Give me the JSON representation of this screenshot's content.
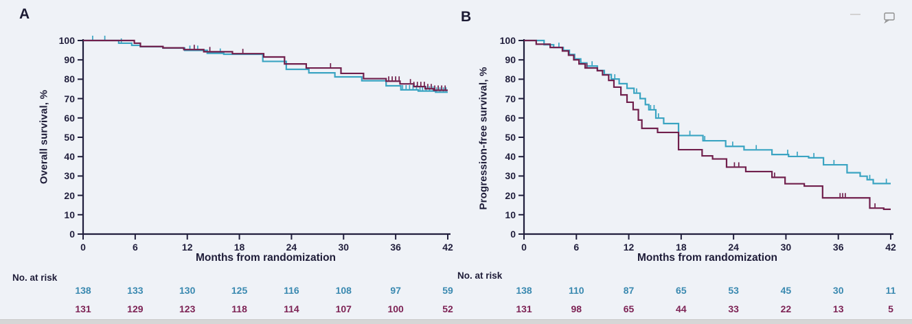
{
  "page": {
    "background": "#eff2f7"
  },
  "header_icons": {
    "comment_icon_color": "#8f8f8f",
    "dash_color": "#d2d2d2"
  },
  "colors": {
    "axis": "#201e3c",
    "teal_curve": "#3aa4c2",
    "maroon_curve": "#701f4c",
    "teal_number": "#3a89b0",
    "maroon_number": "#7d2355"
  },
  "chart_data": [
    {
      "type": "line",
      "subtype": "kaplan-meier-step",
      "panel_label": "A",
      "ylabel": "Overall survival, %",
      "xlabel": "Months from randomization",
      "xlim": [
        0,
        42
      ],
      "ylim": [
        0,
        100
      ],
      "xticks": [
        0,
        6,
        12,
        18,
        24,
        30,
        36,
        42
      ],
      "yticks": [
        0,
        10,
        20,
        30,
        40,
        50,
        60,
        70,
        80,
        90,
        100
      ],
      "grid": false,
      "legend": "none",
      "series": [
        {
          "name": "arm-teal",
          "color": "#3aa4c2",
          "points": [
            [
              0,
              100
            ],
            [
              4.1,
              98.6
            ],
            [
              5.6,
              97.5
            ],
            [
              6.6,
              96.8
            ],
            [
              9.2,
              96.1
            ],
            [
              11.7,
              94.9
            ],
            [
              14.3,
              93.4
            ],
            [
              16.2,
              92.9
            ],
            [
              20.7,
              89.2
            ],
            [
              23.4,
              85.1
            ],
            [
              26,
              83.3
            ],
            [
              29,
              81.2
            ],
            [
              32.1,
              79.2
            ],
            [
              34.9,
              76.6
            ],
            [
              36.6,
              74.5
            ],
            [
              38.6,
              73.9
            ],
            [
              40.6,
              73.3
            ],
            [
              42,
              73.3
            ]
          ],
          "censor_times": [
            1.1,
            2.5,
            4.4,
            12.3,
            13.2,
            15.8,
            36.8,
            37.2,
            37.6,
            38,
            38.4,
            38.8,
            39.1,
            39.5,
            39.9,
            40.3,
            40.7,
            41.1,
            41.5,
            41.8
          ]
        },
        {
          "name": "arm-maroon",
          "color": "#701f4c",
          "points": [
            [
              0,
              100
            ],
            [
              5.9,
              98.6
            ],
            [
              6.6,
              96.9
            ],
            [
              9.2,
              96.2
            ],
            [
              11.6,
              95.3
            ],
            [
              13.9,
              94.2
            ],
            [
              17.2,
              93.2
            ],
            [
              20.8,
              91.5
            ],
            [
              23.2,
              87.9
            ],
            [
              25.7,
              85.8
            ],
            [
              29.7,
              83
            ],
            [
              32.3,
              80.3
            ],
            [
              34.9,
              79
            ],
            [
              36.5,
              77.6
            ],
            [
              38.1,
              76.2
            ],
            [
              39.4,
              75.1
            ],
            [
              40.4,
              74.3
            ],
            [
              42,
              74.3
            ]
          ],
          "censor_times": [
            12.8,
            14.6,
            18.4,
            28.5,
            35.2,
            35.6,
            36,
            36.4,
            37.7,
            38.1,
            38.5,
            38.9,
            39.3,
            39.7,
            40.1,
            40.5,
            40.9,
            41.3,
            41.7
          ]
        }
      ],
      "at_risk": {
        "label": "No. at risk",
        "times": [
          0,
          6,
          12,
          18,
          24,
          30,
          36,
          42
        ],
        "rows": [
          {
            "name": "arm-teal",
            "color": "#3a89b0",
            "values": [
              138,
              133,
              130,
              125,
              116,
              108,
              97,
              59
            ]
          },
          {
            "name": "arm-maroon",
            "color": "#7d2355",
            "values": [
              131,
              129,
              123,
              118,
              114,
              107,
              100,
              52
            ]
          }
        ]
      }
    },
    {
      "type": "line",
      "subtype": "kaplan-meier-step",
      "panel_label": "B",
      "ylabel": "Progression-free survival, %",
      "xlabel": "Months from randomization",
      "xlim": [
        0,
        42
      ],
      "ylim": [
        0,
        100
      ],
      "xticks": [
        0,
        6,
        12,
        18,
        24,
        30,
        36,
        42
      ],
      "yticks": [
        0,
        10,
        20,
        30,
        40,
        50,
        60,
        70,
        80,
        90,
        100
      ],
      "grid": false,
      "legend": "none",
      "series": [
        {
          "name": "arm-teal",
          "color": "#3aa4c2",
          "points": [
            [
              0,
              100
            ],
            [
              2.3,
              97.8
            ],
            [
              3.4,
              96.4
            ],
            [
              4.5,
              94.9
            ],
            [
              5.2,
              92.8
            ],
            [
              5.8,
              90.5
            ],
            [
              6.5,
              88.4
            ],
            [
              7.2,
              86.8
            ],
            [
              8.4,
              84.5
            ],
            [
              9.2,
              82.4
            ],
            [
              10,
              80.1
            ],
            [
              10.9,
              77.7
            ],
            [
              11.8,
              75.3
            ],
            [
              12.6,
              72.8
            ],
            [
              13.3,
              70
            ],
            [
              13.9,
              66.9
            ],
            [
              14.3,
              64.2
            ],
            [
              15.1,
              59.9
            ],
            [
              16,
              57.1
            ],
            [
              17.7,
              50.9
            ],
            [
              20.5,
              48.2
            ],
            [
              23.1,
              45.3
            ],
            [
              25.2,
              43.5
            ],
            [
              28.4,
              41.1
            ],
            [
              30.3,
              40.1
            ],
            [
              32.6,
              39.4
            ],
            [
              34.3,
              35.8
            ],
            [
              37,
              31.7
            ],
            [
              38.5,
              29.9
            ],
            [
              39.3,
              28.1
            ],
            [
              40,
              26.1
            ],
            [
              42,
              26.1
            ]
          ],
          "censor_times": [
            4,
            7.8,
            10.4,
            12.9,
            14.5,
            14.9,
            15.4,
            19,
            20.7,
            23.9,
            26.6,
            30.2,
            31.3,
            33.2,
            35.5,
            39.6,
            41.5
          ]
        },
        {
          "name": "arm-maroon",
          "color": "#701f4c",
          "points": [
            [
              0,
              100
            ],
            [
              1.4,
              98.1
            ],
            [
              3,
              96.4
            ],
            [
              4.4,
              94.6
            ],
            [
              5.1,
              92.4
            ],
            [
              5.7,
              90
            ],
            [
              6.3,
              87.9
            ],
            [
              7,
              85.8
            ],
            [
              8.4,
              84.4
            ],
            [
              9,
              82.2
            ],
            [
              9.7,
              79.4
            ],
            [
              10.3,
              75.9
            ],
            [
              11.1,
              71.9
            ],
            [
              11.8,
              68.1
            ],
            [
              12.5,
              64.3
            ],
            [
              13.1,
              58.9
            ],
            [
              13.5,
              54.6
            ],
            [
              15.3,
              52.5
            ],
            [
              17.7,
              43.6
            ],
            [
              20.4,
              40.4
            ],
            [
              21.6,
              38.8
            ],
            [
              23.2,
              34.6
            ],
            [
              25.4,
              32.3
            ],
            [
              28.4,
              29.3
            ],
            [
              29.9,
              26
            ],
            [
              32.1,
              24.8
            ],
            [
              34.2,
              18.7
            ],
            [
              39.6,
              13.4
            ],
            [
              41.2,
              12.8
            ],
            [
              42,
              12.8
            ]
          ],
          "censor_times": [
            7.2,
            24.1,
            24.6,
            28.7,
            36.2,
            36.5,
            36.8,
            40.2
          ]
        }
      ],
      "at_risk": {
        "label": "No. at risk",
        "times": [
          0,
          6,
          12,
          18,
          24,
          30,
          36,
          42
        ],
        "rows": [
          {
            "name": "arm-teal",
            "color": "#3a89b0",
            "values": [
              138,
              110,
              87,
              65,
              53,
              45,
              30,
              11
            ]
          },
          {
            "name": "arm-maroon",
            "color": "#7d2355",
            "values": [
              131,
              98,
              65,
              44,
              33,
              22,
              13,
              5
            ]
          }
        ]
      }
    }
  ]
}
